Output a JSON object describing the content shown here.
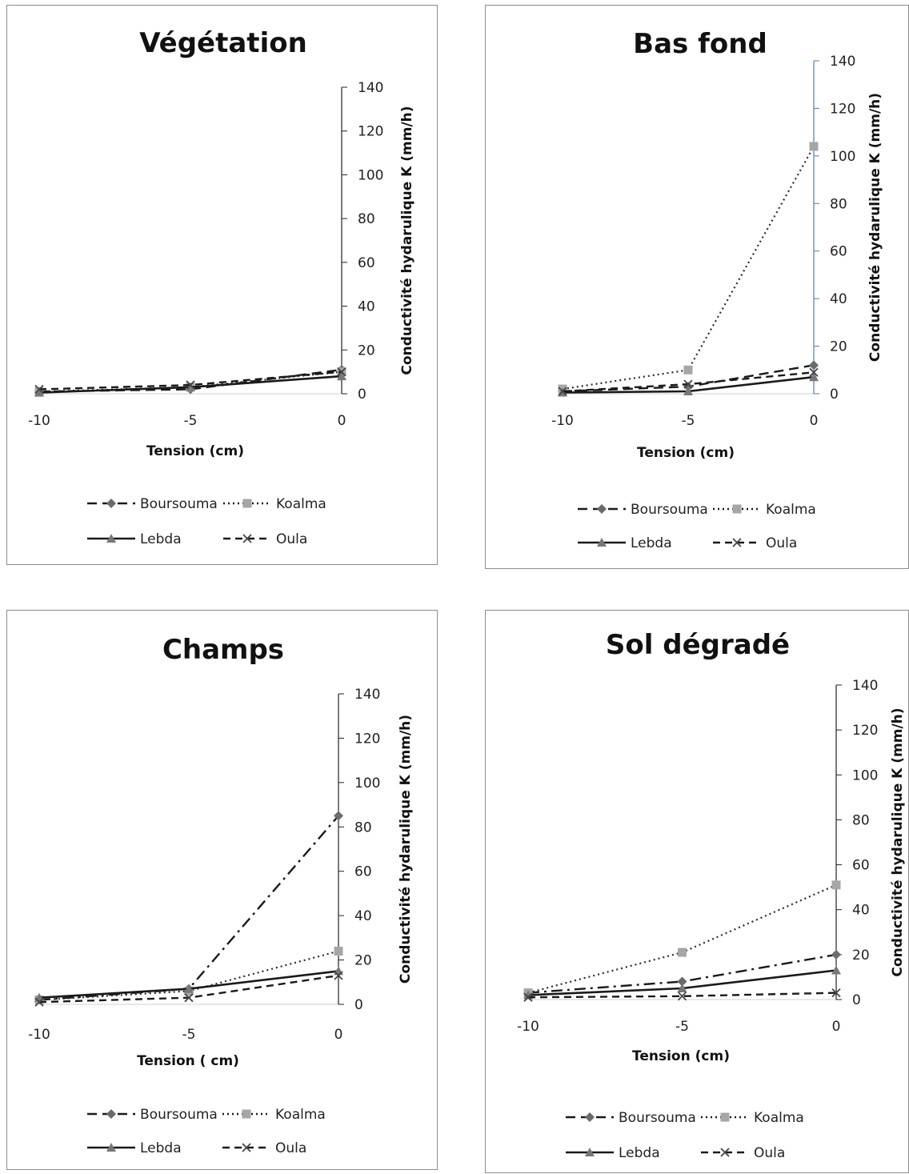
{
  "chart_data": [
    {
      "type": "line",
      "title": "Végétation",
      "xlabel": "Tension (cm)",
      "ylabel": "Conductivité hydarulique K (mm/h)",
      "x": [
        -10,
        -5,
        0
      ],
      "xticks": [
        "-10",
        "-5",
        "0"
      ],
      "yticks": [
        "0",
        "20",
        "40",
        "60",
        "80",
        "100",
        "120",
        "140"
      ],
      "xlim": [
        -10,
        0
      ],
      "ylim": [
        0,
        140
      ],
      "legend_position": "bottom",
      "series": [
        {
          "name": "Boursouma",
          "values": [
            1,
            2,
            11
          ]
        },
        {
          "name": "Koalma",
          "values": [
            1,
            3,
            10
          ]
        },
        {
          "name": "Lebda",
          "values": [
            0.5,
            3,
            8
          ]
        },
        {
          "name": "Oula",
          "values": [
            2,
            4,
            10
          ]
        }
      ]
    },
    {
      "type": "line",
      "title": "Bas fond",
      "xlabel": "Tension (cm)",
      "ylabel": "Conductivité hydarulique K (mm/h)",
      "x": [
        -10,
        -5,
        0
      ],
      "xticks": [
        "-10",
        "-5",
        "0"
      ],
      "yticks": [
        "0",
        "20",
        "40",
        "60",
        "80",
        "100",
        "120",
        "140"
      ],
      "xlim": [
        -10,
        0
      ],
      "ylim": [
        0,
        140
      ],
      "legend_position": "bottom",
      "series": [
        {
          "name": "Boursouma",
          "values": [
            1,
            3,
            12
          ]
        },
        {
          "name": "Koalma",
          "values": [
            2,
            10,
            104
          ]
        },
        {
          "name": "Lebda",
          "values": [
            0.5,
            1,
            7
          ]
        },
        {
          "name": "Oula",
          "values": [
            1,
            4,
            9
          ]
        }
      ]
    },
    {
      "type": "line",
      "title": "Champs",
      "xlabel": "Tension ( cm)",
      "ylabel": "Conductivité hydarulique K (mm/h)",
      "x": [
        -10,
        -5,
        0
      ],
      "xticks": [
        "-10",
        "-5",
        "0"
      ],
      "yticks": [
        "0",
        "20",
        "40",
        "60",
        "80",
        "100",
        "120",
        "140"
      ],
      "xlim": [
        -10,
        0
      ],
      "ylim": [
        0,
        140
      ],
      "legend_position": "bottom",
      "series": [
        {
          "name": "Boursouma",
          "values": [
            2,
            7,
            85
          ]
        },
        {
          "name": "Koalma",
          "values": [
            2,
            6,
            24
          ]
        },
        {
          "name": "Lebda",
          "values": [
            3,
            7,
            15
          ]
        },
        {
          "name": "Oula",
          "values": [
            1,
            3,
            13
          ]
        }
      ]
    },
    {
      "type": "line",
      "title": "Sol dégradé",
      "xlabel": "Tension (cm)",
      "ylabel": "Conductivité hydarulique K (mm/h)",
      "x": [
        -10,
        -5,
        0
      ],
      "xticks": [
        "-10",
        "-5",
        "0"
      ],
      "yticks": [
        "0",
        "20",
        "40",
        "60",
        "80",
        "100",
        "120",
        "140"
      ],
      "xlim": [
        -10,
        0
      ],
      "ylim": [
        0,
        140
      ],
      "legend_position": "bottom",
      "series": [
        {
          "name": "Boursouma",
          "values": [
            3,
            8,
            20
          ]
        },
        {
          "name": "Koalma",
          "values": [
            3,
            21,
            51
          ]
        },
        {
          "name": "Lebda",
          "values": [
            2,
            5,
            13
          ]
        },
        {
          "name": "Oula",
          "values": [
            1,
            1.5,
            3
          ]
        }
      ]
    }
  ],
  "colors": {
    "Boursouma": "#6b6b6b",
    "Koalma": "#a6a6a6",
    "Lebda": "#1a1a1a",
    "Oula": "#1a1a1a",
    "bas_fond_axis": "#4a7ebb"
  },
  "markers": {
    "Boursouma": "diamond",
    "Koalma": "square",
    "Lebda": "triangle",
    "Oula": "x"
  }
}
